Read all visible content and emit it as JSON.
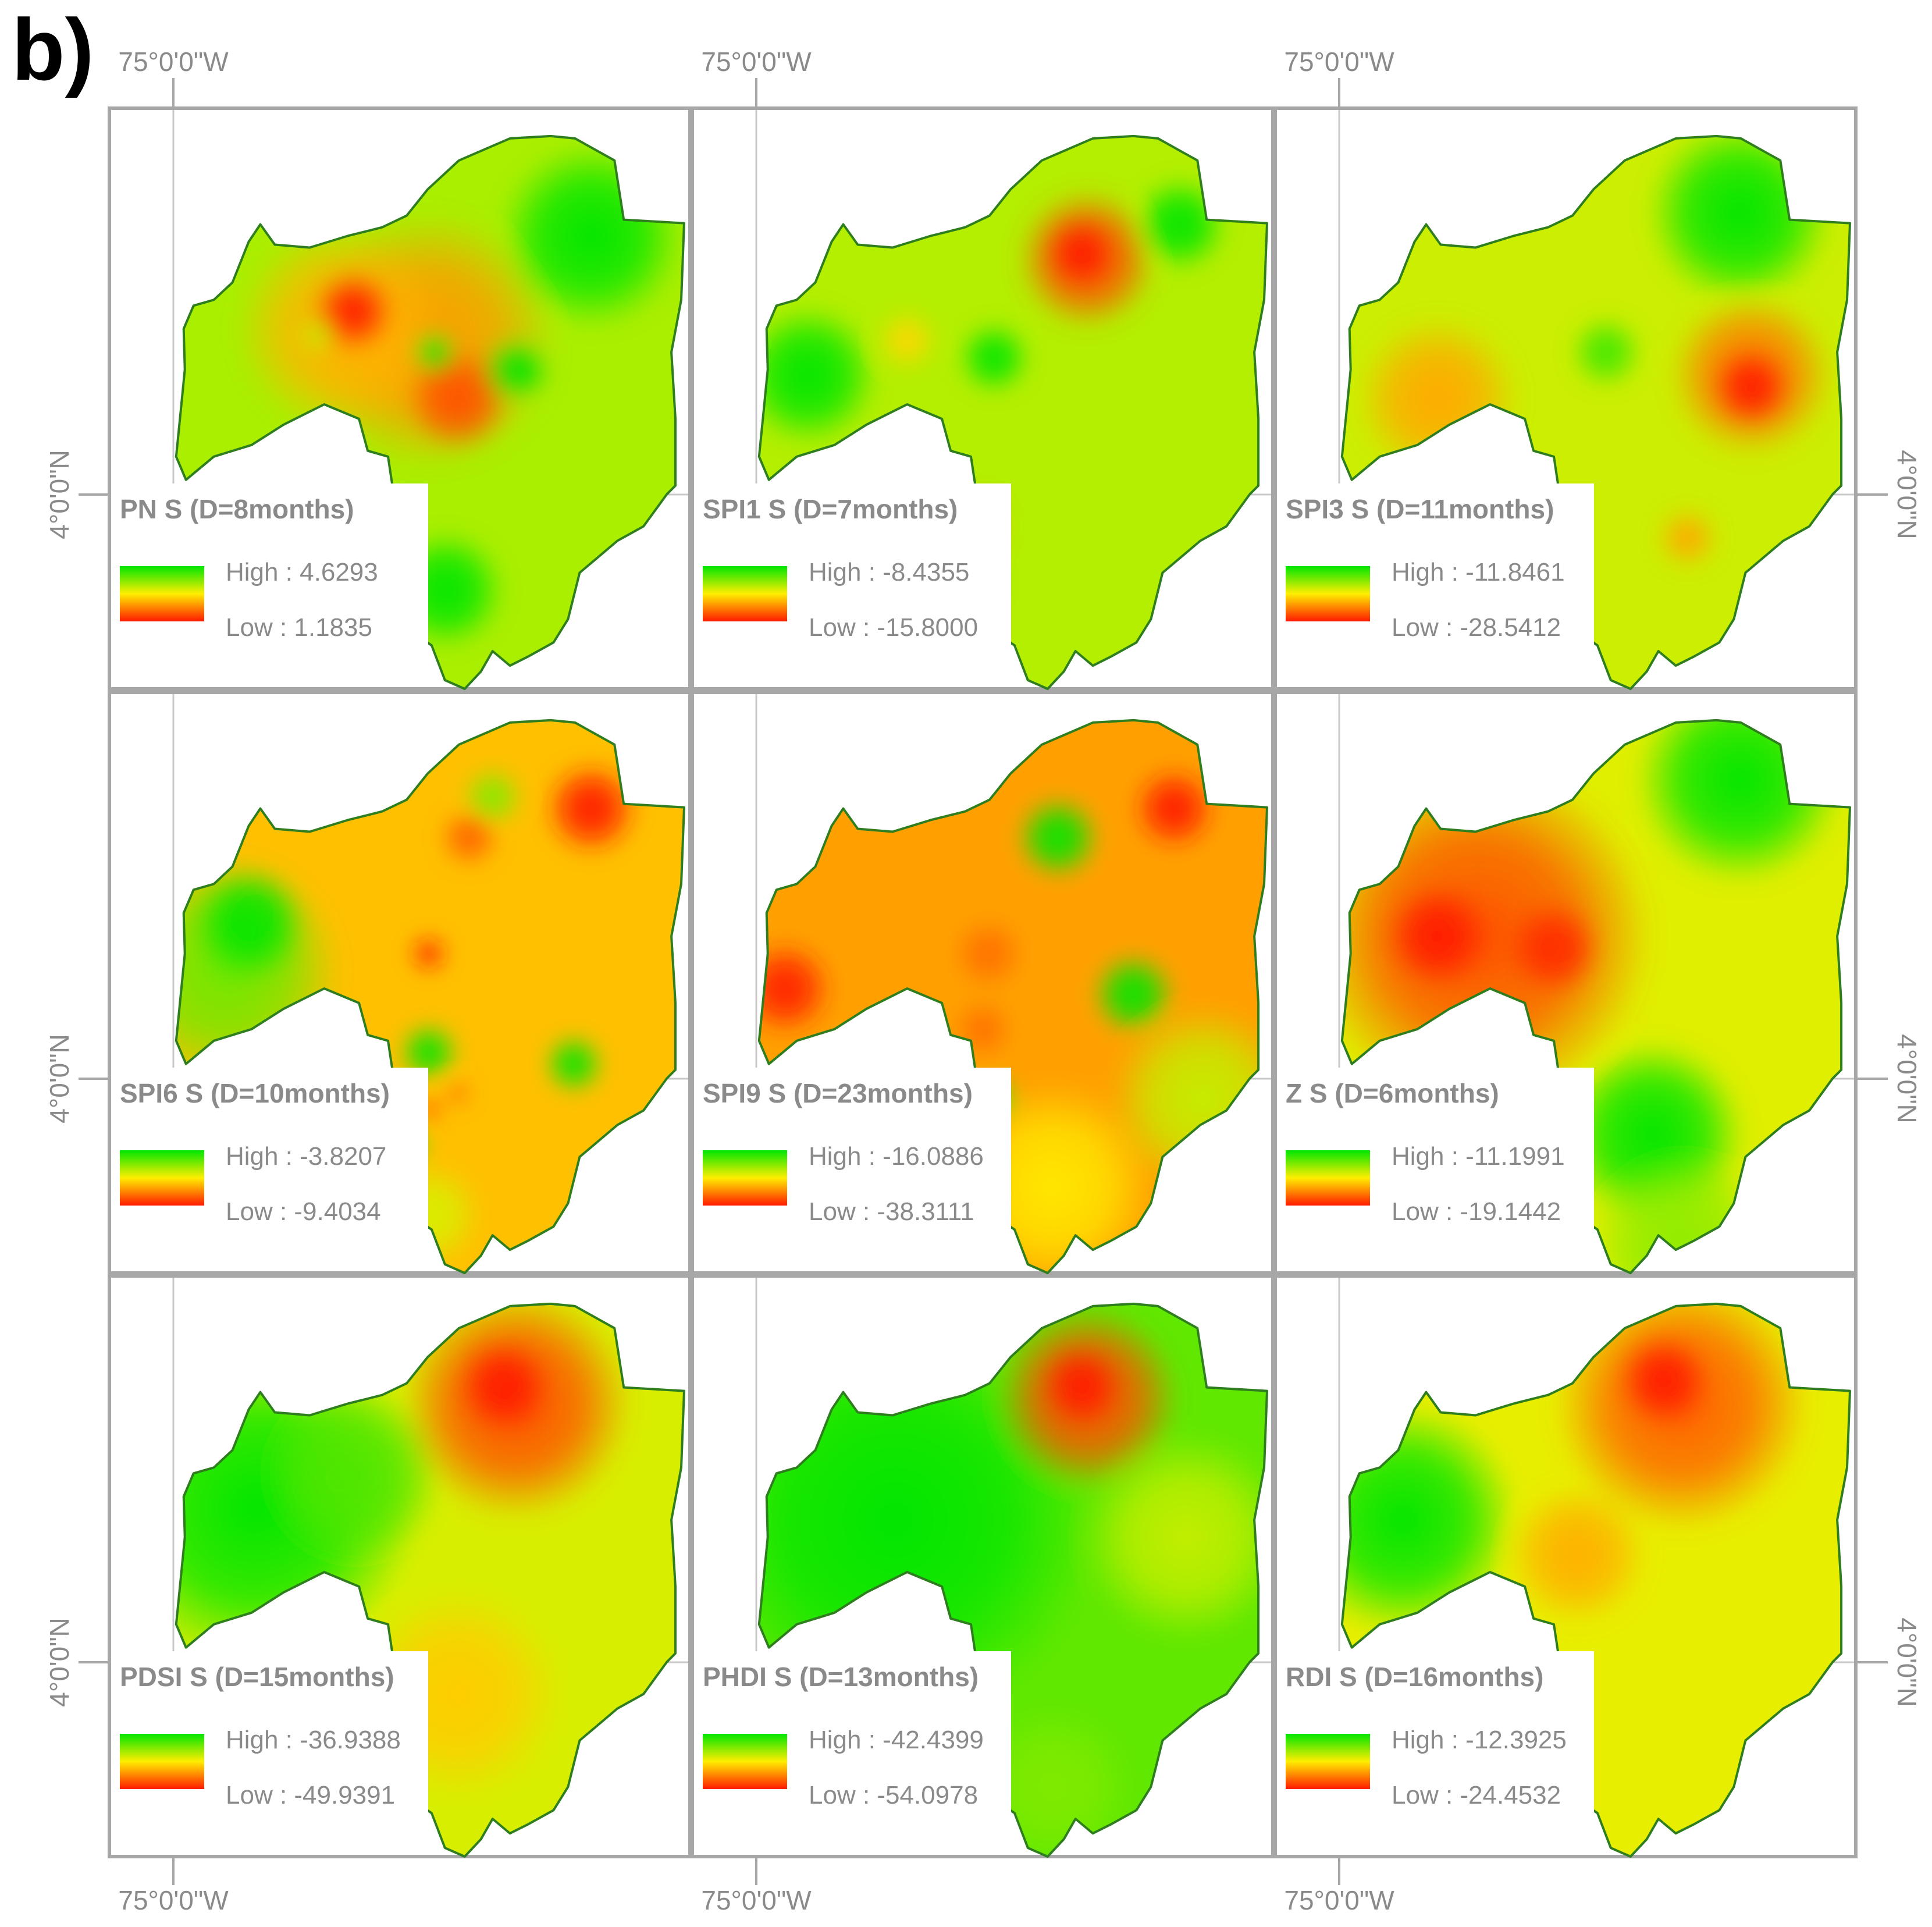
{
  "figure": {
    "label": "b)",
    "lon_label": "75°0'0\"W",
    "lat_label": "4°0'0\"N"
  },
  "legend_colors": {
    "high": "#00e600",
    "mid": "#ffee00",
    "low": "#ff1a00",
    "outline": "#2e7d1e"
  },
  "panels": [
    {
      "title": "PN S (D=8months)",
      "high_label": "High : 4.6293",
      "low_label": "Low : 1.1835",
      "base": "#aaee00",
      "spots": [
        {
          "u": 0.55,
          "v": 0.4,
          "r": 0.22,
          "c": "#ff9a00"
        },
        {
          "u": 0.4,
          "v": 0.38,
          "r": 0.18,
          "c": "#ffb400"
        },
        {
          "u": 0.42,
          "v": 0.35,
          "r": 0.07,
          "c": "#ff1a00"
        },
        {
          "u": 0.6,
          "v": 0.5,
          "r": 0.09,
          "c": "#ff5000"
        },
        {
          "u": 0.83,
          "v": 0.22,
          "r": 0.16,
          "c": "#00e600"
        },
        {
          "u": 0.58,
          "v": 0.83,
          "r": 0.1,
          "c": "#00e600"
        },
        {
          "u": 0.36,
          "v": 0.39,
          "r": 0.03,
          "c": "#bff000"
        },
        {
          "u": 0.7,
          "v": 0.45,
          "r": 0.06,
          "c": "#00e600"
        },
        {
          "u": 0.56,
          "v": 0.42,
          "r": 0.04,
          "c": "#20e800"
        }
      ]
    },
    {
      "title": "SPI1 S (D=7months)",
      "high_label": "High : -8.4355",
      "low_label": "Low : -15.8000",
      "base": "#b4ee00",
      "spots": [
        {
          "u": 0.68,
          "v": 0.26,
          "r": 0.12,
          "c": "#ff5000"
        },
        {
          "u": 0.67,
          "v": 0.25,
          "r": 0.06,
          "c": "#ff1a00"
        },
        {
          "u": 0.84,
          "v": 0.2,
          "r": 0.08,
          "c": "#00e600"
        },
        {
          "u": 0.2,
          "v": 0.46,
          "r": 0.12,
          "c": "#00e600"
        },
        {
          "u": 0.52,
          "v": 0.43,
          "r": 0.06,
          "c": "#00e600"
        },
        {
          "u": 0.48,
          "v": 0.72,
          "r": 0.06,
          "c": "#ff9a00"
        },
        {
          "u": 0.48,
          "v": 0.82,
          "r": 0.05,
          "c": "#00e600"
        },
        {
          "u": 0.37,
          "v": 0.4,
          "r": 0.05,
          "c": "#ffd800"
        }
      ]
    },
    {
      "title": "SPI3 S (D=11months)",
      "high_label": "High : -11.8461",
      "low_label": "Low : -28.5412",
      "base": "#ccee00",
      "spots": [
        {
          "u": 0.82,
          "v": 0.46,
          "r": 0.14,
          "c": "#ff7a00"
        },
        {
          "u": 0.82,
          "v": 0.48,
          "r": 0.07,
          "c": "#ff1a00"
        },
        {
          "u": 0.28,
          "v": 0.5,
          "r": 0.14,
          "c": "#ffaa00"
        },
        {
          "u": 0.8,
          "v": 0.18,
          "r": 0.16,
          "c": "#00e600"
        },
        {
          "u": 0.57,
          "v": 0.42,
          "r": 0.06,
          "c": "#40e800"
        },
        {
          "u": 0.71,
          "v": 0.74,
          "r": 0.05,
          "c": "#ffaa00"
        }
      ]
    },
    {
      "title": "SPI6 S (D=10months)",
      "high_label": "High : -3.8207",
      "low_label": "Low : -9.4034",
      "base": "#ffc000",
      "spots": [
        {
          "u": 0.2,
          "v": 0.48,
          "r": 0.2,
          "c": "#70e800"
        },
        {
          "u": 0.24,
          "v": 0.4,
          "r": 0.1,
          "c": "#00e600"
        },
        {
          "u": 0.83,
          "v": 0.2,
          "r": 0.08,
          "c": "#ff1a00"
        },
        {
          "u": 0.66,
          "v": 0.18,
          "r": 0.05,
          "c": "#80ec00"
        },
        {
          "u": 0.55,
          "v": 0.45,
          "r": 0.03,
          "c": "#ff1a00"
        },
        {
          "u": 0.8,
          "v": 0.64,
          "r": 0.05,
          "c": "#00e600"
        },
        {
          "u": 0.55,
          "v": 0.62,
          "r": 0.05,
          "c": "#00e600"
        },
        {
          "u": 0.5,
          "v": 0.78,
          "r": 0.05,
          "c": "#00e600"
        },
        {
          "u": 0.55,
          "v": 0.72,
          "r": 0.02,
          "c": "#ff4000"
        },
        {
          "u": 0.6,
          "v": 0.69,
          "r": 0.02,
          "c": "#ff6000"
        },
        {
          "u": 0.55,
          "v": 0.9,
          "r": 0.09,
          "c": "#d8ef00"
        },
        {
          "u": 0.62,
          "v": 0.25,
          "r": 0.05,
          "c": "#ff6000"
        }
      ]
    },
    {
      "title": "SPI9 S (D=23months)",
      "high_label": "High : -16.0886",
      "low_label": "Low : -38.3111",
      "base": "#ffa000",
      "spots": [
        {
          "u": 0.16,
          "v": 0.51,
          "r": 0.08,
          "c": "#ff2000"
        },
        {
          "u": 0.83,
          "v": 0.2,
          "r": 0.07,
          "c": "#ff1a00"
        },
        {
          "u": 0.63,
          "v": 0.25,
          "r": 0.07,
          "c": "#00e600"
        },
        {
          "u": 0.76,
          "v": 0.52,
          "r": 0.07,
          "c": "#00e600"
        },
        {
          "u": 0.52,
          "v": 0.7,
          "r": 0.04,
          "c": "#00e600"
        },
        {
          "u": 0.62,
          "v": 0.85,
          "r": 0.18,
          "c": "#ffe800"
        },
        {
          "u": 0.88,
          "v": 0.7,
          "r": 0.16,
          "c": "#c4ee00"
        },
        {
          "u": 0.51,
          "v": 0.45,
          "r": 0.06,
          "c": "#ff7000"
        },
        {
          "u": 0.5,
          "v": 0.58,
          "r": 0.05,
          "c": "#ff7000"
        }
      ]
    },
    {
      "title": "Z S (D=6months)",
      "high_label": "High : -11.1991",
      "low_label": "Low : -19.1442",
      "base": "#e0ee00",
      "spots": [
        {
          "u": 0.35,
          "v": 0.42,
          "r": 0.3,
          "c": "#ff5000"
        },
        {
          "u": 0.28,
          "v": 0.42,
          "r": 0.09,
          "c": "#ff1a00"
        },
        {
          "u": 0.48,
          "v": 0.44,
          "r": 0.08,
          "c": "#ff2a00"
        },
        {
          "u": 0.8,
          "v": 0.15,
          "r": 0.18,
          "c": "#00e600"
        },
        {
          "u": 0.65,
          "v": 0.76,
          "r": 0.16,
          "c": "#00e600"
        },
        {
          "u": 0.7,
          "v": 0.95,
          "r": 0.16,
          "c": "#90ec00"
        }
      ]
    },
    {
      "title": "PDSI S (D=15months)",
      "high_label": "High : -36.9388",
      "low_label": "Low : -49.9391",
      "base": "#d8ee00",
      "spots": [
        {
          "u": 0.25,
          "v": 0.4,
          "r": 0.28,
          "c": "#00e600"
        },
        {
          "u": 0.42,
          "v": 0.34,
          "r": 0.16,
          "c": "#50e600"
        },
        {
          "u": 0.7,
          "v": 0.22,
          "r": 0.2,
          "c": "#ff5000"
        },
        {
          "u": 0.68,
          "v": 0.19,
          "r": 0.08,
          "c": "#ff1a00"
        },
        {
          "u": 0.6,
          "v": 0.72,
          "r": 0.18,
          "c": "#ffcc00"
        }
      ]
    },
    {
      "title": "PHDI S (D=13months)",
      "high_label": "High : -42.4399",
      "low_label": "Low : -54.0978",
      "base": "#60e800",
      "spots": [
        {
          "u": 0.35,
          "v": 0.42,
          "r": 0.35,
          "c": "#00e600"
        },
        {
          "u": 0.68,
          "v": 0.21,
          "r": 0.16,
          "c": "#ff5000"
        },
        {
          "u": 0.67,
          "v": 0.19,
          "r": 0.07,
          "c": "#ff1a00"
        },
        {
          "u": 0.85,
          "v": 0.45,
          "r": 0.18,
          "c": "#c4ee00"
        },
        {
          "u": 0.62,
          "v": 0.88,
          "r": 0.14,
          "c": "#80ea00"
        }
      ]
    },
    {
      "title": "RDI S (D=16months)",
      "high_label": "High : -12.3925",
      "low_label": "Low : -24.4532",
      "base": "#e8ee00",
      "spots": [
        {
          "u": 0.22,
          "v": 0.42,
          "r": 0.2,
          "c": "#00e600"
        },
        {
          "u": 0.7,
          "v": 0.22,
          "r": 0.22,
          "c": "#ff6000"
        },
        {
          "u": 0.67,
          "v": 0.18,
          "r": 0.08,
          "c": "#ff1a00"
        },
        {
          "u": 0.52,
          "v": 0.48,
          "r": 0.12,
          "c": "#ffb000"
        }
      ]
    }
  ]
}
